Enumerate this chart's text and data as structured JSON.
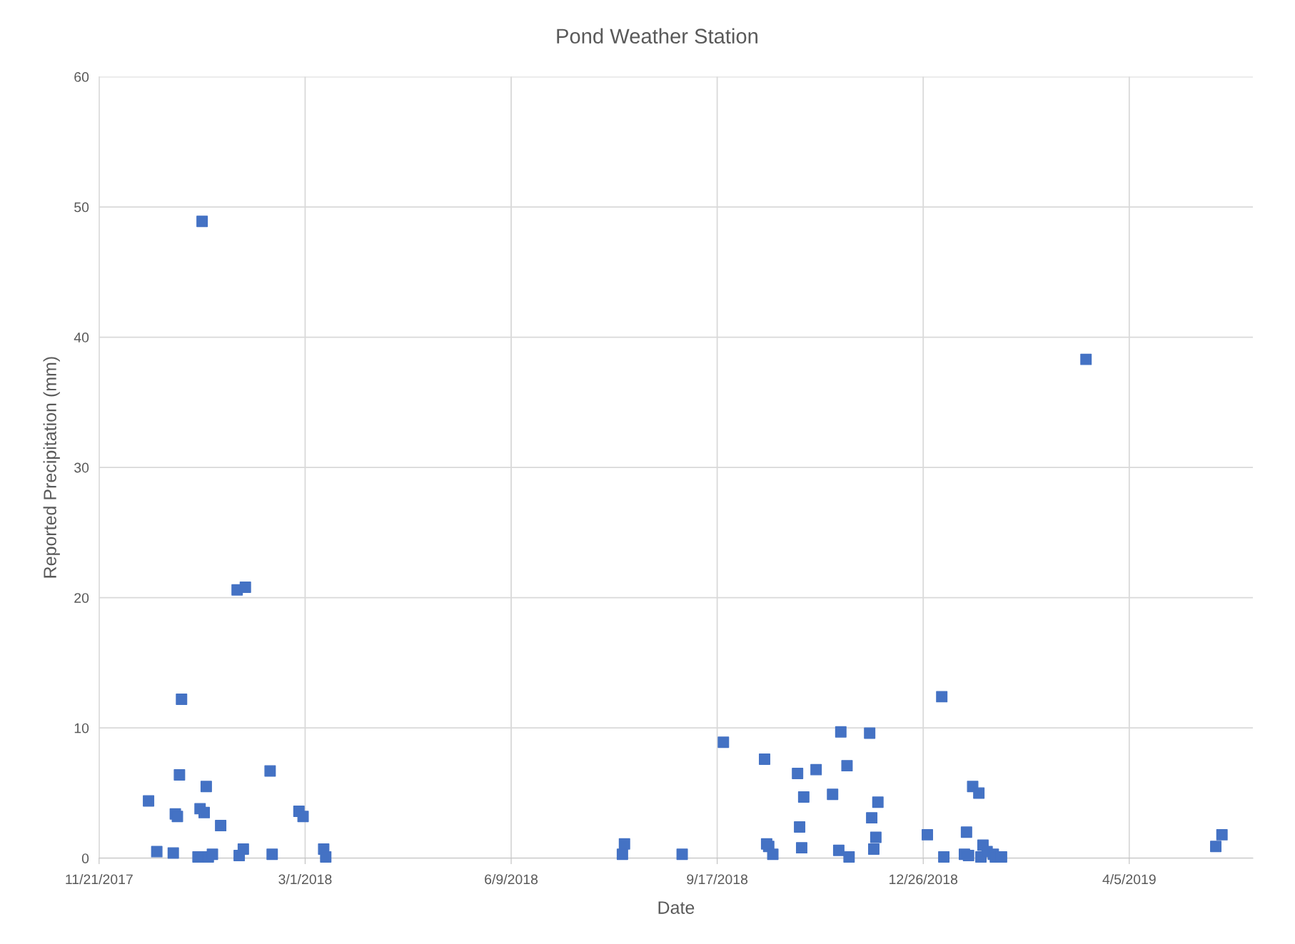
{
  "chart_data": {
    "type": "scatter",
    "title": "Pond Weather Station",
    "xlabel": "Date",
    "ylabel": "Reported Precipitation (mm)",
    "x": [
      "2017-12-15",
      "2017-12-19",
      "2017-12-27",
      "2017-12-28",
      "2017-12-29",
      "2017-12-30",
      "2017-12-31",
      "2018-01-08",
      "2018-01-09",
      "2018-01-10",
      "2018-01-11",
      "2018-01-12",
      "2018-01-13",
      "2018-01-15",
      "2018-01-19",
      "2018-01-27",
      "2018-01-28",
      "2018-01-30",
      "2018-01-31",
      "2018-02-12",
      "2018-02-13",
      "2018-02-26",
      "2018-02-28",
      "2018-03-10",
      "2018-03-11",
      "2018-08-02",
      "2018-08-03",
      "2018-08-31",
      "2018-09-20",
      "2018-10-10",
      "2018-10-11",
      "2018-10-12",
      "2018-10-14",
      "2018-10-26",
      "2018-10-27",
      "2018-10-28",
      "2018-10-29",
      "2018-11-04",
      "2018-11-12",
      "2018-11-15",
      "2018-11-16",
      "2018-11-19",
      "2018-11-20",
      "2018-11-30",
      "2018-12-01",
      "2018-12-02",
      "2018-12-03",
      "2018-12-04",
      "2018-12-28",
      "2019-01-04",
      "2019-01-05",
      "2019-01-15",
      "2019-01-16",
      "2019-01-17",
      "2019-01-19",
      "2019-01-22",
      "2019-01-23",
      "2019-01-24",
      "2019-01-26",
      "2019-01-29",
      "2019-01-30",
      "2019-02-02",
      "2019-03-15",
      "2019-05-17",
      "2019-05-20"
    ],
    "series": [
      {
        "color": "#4472c4",
        "values": [
          4.4,
          0.5,
          0.4,
          3.4,
          3.2,
          6.4,
          12.2,
          0.1,
          3.8,
          48.9,
          3.5,
          5.5,
          0.1,
          0.3,
          2.5,
          20.6,
          0.2,
          0.7,
          20.8,
          6.7,
          0.3,
          3.6,
          3.2,
          0.7,
          0.1,
          0.3,
          1.1,
          0.3,
          8.9,
          7.6,
          1.1,
          0.9,
          0.3,
          6.5,
          2.4,
          0.8,
          4.7,
          6.8,
          4.9,
          0.6,
          9.7,
          7.1,
          0.1,
          9.6,
          3.1,
          0.7,
          1.6,
          4.3,
          1.8,
          12.4,
          0.1,
          0.3,
          2.0,
          0.2,
          5.5,
          5.0,
          0.1,
          1.0,
          0.5,
          0.3,
          0.1,
          0.1,
          38.3,
          0.9,
          1.8
        ]
      }
    ],
    "marker": "square",
    "xlim": [
      "2017-11-21",
      "2019-06-04"
    ],
    "xticks": [
      {
        "value": "2017-11-21",
        "label": "11/21/2017"
      },
      {
        "value": "2018-03-01",
        "label": "3/1/2018"
      },
      {
        "value": "2018-06-09",
        "label": "6/9/2018"
      },
      {
        "value": "2018-09-17",
        "label": "9/17/2018"
      },
      {
        "value": "2018-12-26",
        "label": "12/26/2018"
      },
      {
        "value": "2019-04-05",
        "label": "4/5/2019"
      }
    ],
    "ylim": [
      0,
      60
    ],
    "yticks": [
      0,
      10,
      20,
      30,
      40,
      50,
      60
    ],
    "grid": true
  }
}
